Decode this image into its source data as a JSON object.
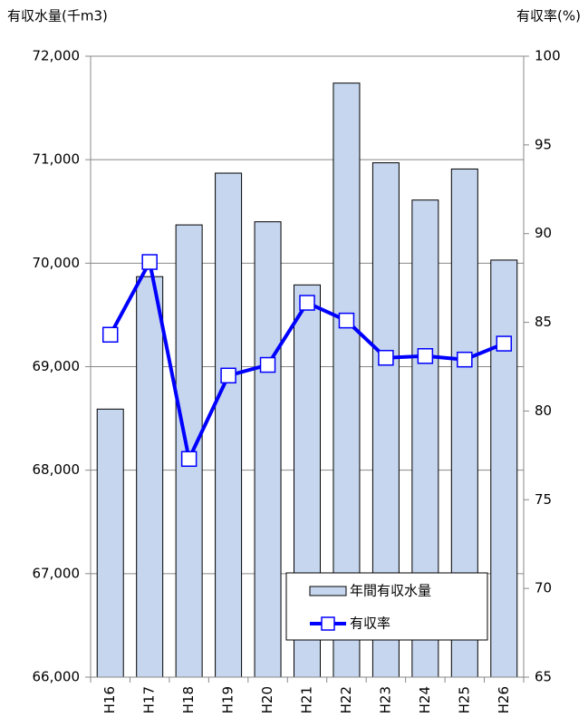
{
  "chart_data": {
    "type": "bar_line",
    "y_label": "有収水量(千m3)",
    "y2_label": "有収率(%)",
    "categories": [
      "H16",
      "H17",
      "H18",
      "H19",
      "H20",
      "H21",
      "H22",
      "H23",
      "H24",
      "H25",
      "H26"
    ],
    "series": [
      {
        "name": "年間有収水量",
        "type": "bar",
        "color": "#c6d6ee",
        "values": [
          68590,
          69870,
          70370,
          70870,
          70400,
          69790,
          71740,
          70970,
          70610,
          70910,
          70030
        ]
      },
      {
        "name": "有収率",
        "type": "line",
        "axis": "y2",
        "color": "#0000ff",
        "values": [
          84.3,
          88.4,
          77.3,
          82.0,
          82.6,
          86.1,
          85.1,
          83.0,
          83.1,
          82.9,
          83.8
        ]
      }
    ],
    "ylim": [
      66000,
      72000
    ],
    "yticks": [
      {
        "value": 66000,
        "label": "66,000"
      },
      {
        "value": 67000,
        "label": "67,000"
      },
      {
        "value": 68000,
        "label": "68,000"
      },
      {
        "value": 69000,
        "label": "69,000"
      },
      {
        "value": 70000,
        "label": "70,000"
      },
      {
        "value": 71000,
        "label": "71,000"
      },
      {
        "value": 72000,
        "label": "72,000"
      }
    ],
    "y2lim": [
      65,
      100
    ],
    "y2ticks": [
      65,
      70,
      75,
      80,
      85,
      90,
      95,
      100
    ],
    "grid": true,
    "legend": "lower right"
  }
}
